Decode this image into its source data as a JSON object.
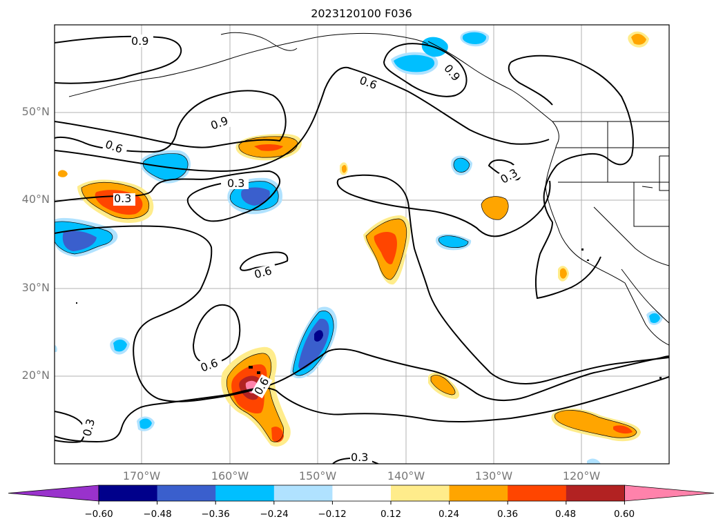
{
  "title": "2023120100 F036",
  "lat_labels": [
    "50°N",
    "40°N",
    "30°N",
    "20°N"
  ],
  "lon_labels": [
    "170°W",
    "160°W",
    "150°W",
    "140°W",
    "130°W",
    "120°W"
  ],
  "colorbar": {
    "ticks": [
      "−0.60",
      "−0.48",
      "−0.36",
      "−0.24",
      "−0.12",
      "0.12",
      "0.24",
      "0.36",
      "0.48",
      "0.60"
    ],
    "colors": [
      "#9932cc",
      "#00008b",
      "#3a5fcd",
      "#00bfff",
      "#b0e2ff",
      "#ffffff",
      "#ffec8b",
      "#ffa500",
      "#ff4500",
      "#b22222",
      "#ff82ab"
    ]
  },
  "contour_labels": {
    "c1": "0.9",
    "c2": "0.6",
    "c3": "0.9",
    "c4": "0.9",
    "c5": "0.6",
    "c6": "0.3",
    "c7": "0.3",
    "c8": "0.3",
    "c9": "0.6",
    "c10": "0.6",
    "c11": "0.6",
    "c12": "0.3",
    "c13": "0.3"
  }
}
